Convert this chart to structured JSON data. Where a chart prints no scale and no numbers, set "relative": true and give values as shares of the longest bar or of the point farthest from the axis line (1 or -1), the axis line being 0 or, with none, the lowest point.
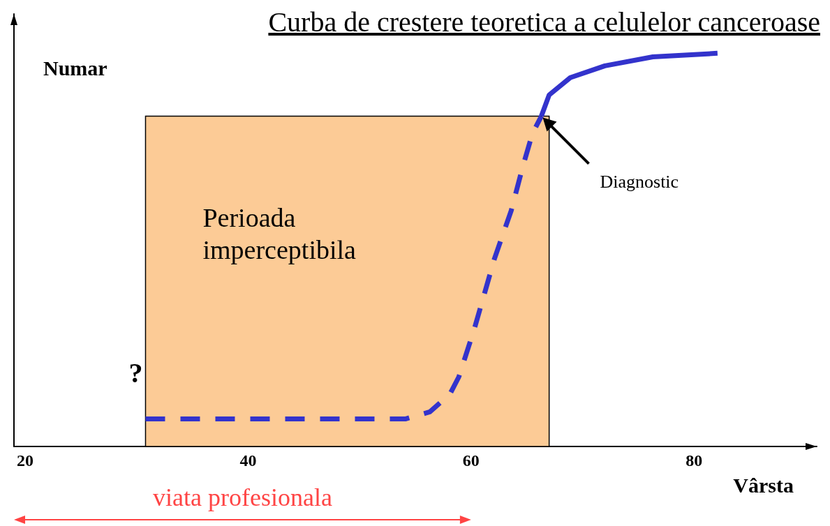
{
  "chart_data": {
    "type": "line",
    "title": "Curba de crestere teoretica a celulelor canceroase",
    "xlabel": "Vârsta",
    "ylabel": "Numar",
    "relative": true,
    "marker": "none",
    "grid": false,
    "xlim": [
      19,
      91
    ],
    "xticks": [
      20,
      40,
      60,
      80
    ],
    "series": [
      {
        "color": "#3333cc",
        "line_style": "dashed",
        "x": [
          30.8,
          54.1,
          56.3,
          58.1,
          58.9,
          60.3,
          62.1,
          63.6,
          64.6,
          65.5,
          66.3
        ],
        "values": [
          0.07,
          0.07,
          0.088,
          0.133,
          0.177,
          0.3,
          0.478,
          0.6,
          0.708,
          0.796,
          0.84
        ]
      },
      {
        "color": "#3333cc",
        "line_style": "solid",
        "x": [
          66.3,
          67.0,
          68.9,
          72.0,
          76.3,
          82.1
        ],
        "values": [
          0.84,
          0.894,
          0.938,
          0.968,
          0.991,
          1.0
        ]
      }
    ],
    "bands": [
      {
        "axis": "x",
        "from": 30.8,
        "to": 67.0,
        "label": "Perioada imperceptibila",
        "color": "#fccb96"
      }
    ],
    "annotations": [
      "Diagnostic",
      "?",
      "viata profesionala"
    ]
  }
}
